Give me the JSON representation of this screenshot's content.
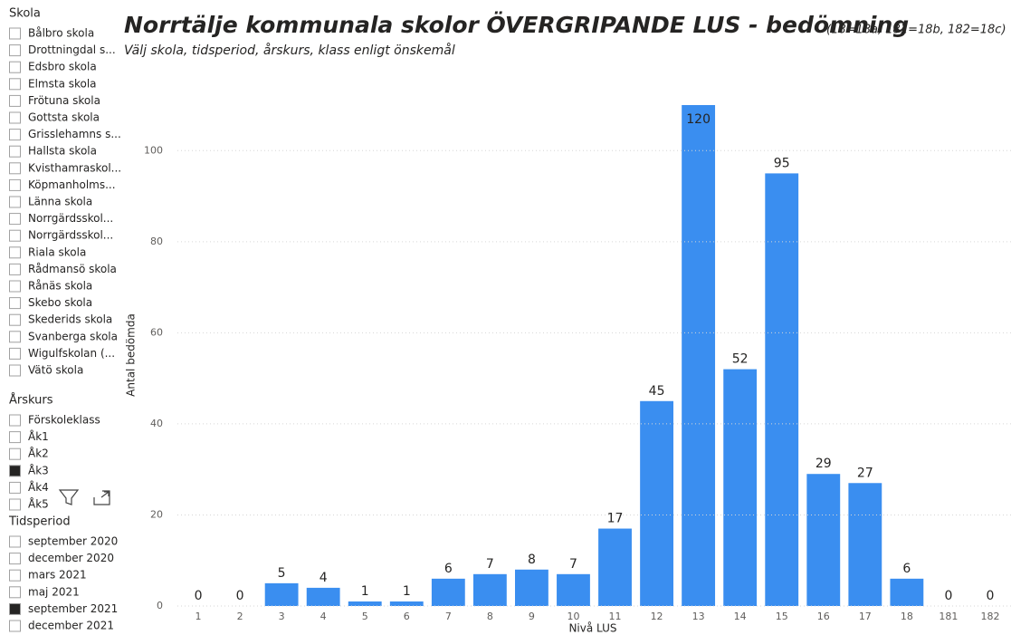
{
  "slicers": [
    {
      "title": "Skola",
      "items": [
        {
          "label": "Bålbro skola",
          "checked": false
        },
        {
          "label": "Drottningdal s...",
          "checked": false
        },
        {
          "label": "Edsbro skola",
          "checked": false
        },
        {
          "label": "Elmsta skola",
          "checked": false
        },
        {
          "label": "Frötuna skola",
          "checked": false
        },
        {
          "label": "Gottsta skola",
          "checked": false
        },
        {
          "label": "Grisslehamns s...",
          "checked": false
        },
        {
          "label": "Hallsta skola",
          "checked": false
        },
        {
          "label": "Kvisthamraskol...",
          "checked": false
        },
        {
          "label": "Köpmanholms...",
          "checked": false
        },
        {
          "label": "Länna skola",
          "checked": false
        },
        {
          "label": "Norrgärdsskol...",
          "checked": false
        },
        {
          "label": "Norrgärdsskol...",
          "checked": false
        },
        {
          "label": "Riala skola",
          "checked": false
        },
        {
          "label": "Rådmansö skola",
          "checked": false
        },
        {
          "label": "Rånäs skola",
          "checked": false
        },
        {
          "label": "Skebo skola",
          "checked": false
        },
        {
          "label": "Skederids skola",
          "checked": false
        },
        {
          "label": "Svanberga skola",
          "checked": false
        },
        {
          "label": "Wigulfskolan (...",
          "checked": false
        },
        {
          "label": "Vätö skola",
          "checked": false
        }
      ]
    },
    {
      "title": "Årskurs",
      "items": [
        {
          "label": "Förskoleklass",
          "checked": false
        },
        {
          "label": "Åk1",
          "checked": false
        },
        {
          "label": "Åk2",
          "checked": false
        },
        {
          "label": "Åk3",
          "checked": true
        },
        {
          "label": "Åk4",
          "checked": false
        },
        {
          "label": "Åk5",
          "checked": false
        }
      ]
    },
    {
      "title": "Tidsperiod",
      "items": [
        {
          "label": "september 2020",
          "checked": false
        },
        {
          "label": "december 2020",
          "checked": false
        },
        {
          "label": "mars 2021",
          "checked": false
        },
        {
          "label": "maj 2021",
          "checked": false
        },
        {
          "label": "september 2021",
          "checked": true
        },
        {
          "label": "december 2021",
          "checked": false
        }
      ]
    }
  ],
  "chart_data": {
    "type": "bar",
    "title": "Norrtälje kommunala skolor ÖVERGRIPANDE LUS - bedömning",
    "title_note": "(18=18a, 181=18b, 182=18c)",
    "subtitle": "Välj skola, tidsperiod, årskurs, klass enligt önskemål",
    "x_label": "Nivå LUS",
    "y_label": "Antal bedömda",
    "categories": [
      "1",
      "2",
      "3",
      "4",
      "5",
      "6",
      "7",
      "8",
      "9",
      "10",
      "11",
      "12",
      "13",
      "14",
      "15",
      "16",
      "17",
      "18",
      "181",
      "182"
    ],
    "values": [
      0,
      0,
      5,
      4,
      1,
      1,
      6,
      7,
      8,
      7,
      17,
      45,
      120,
      52,
      95,
      29,
      27,
      6,
      0,
      0
    ],
    "color": "#3a8ef0",
    "ylim": [
      0,
      110
    ],
    "yticks": [
      0,
      20,
      40,
      60,
      80,
      100
    ],
    "grid": true
  }
}
